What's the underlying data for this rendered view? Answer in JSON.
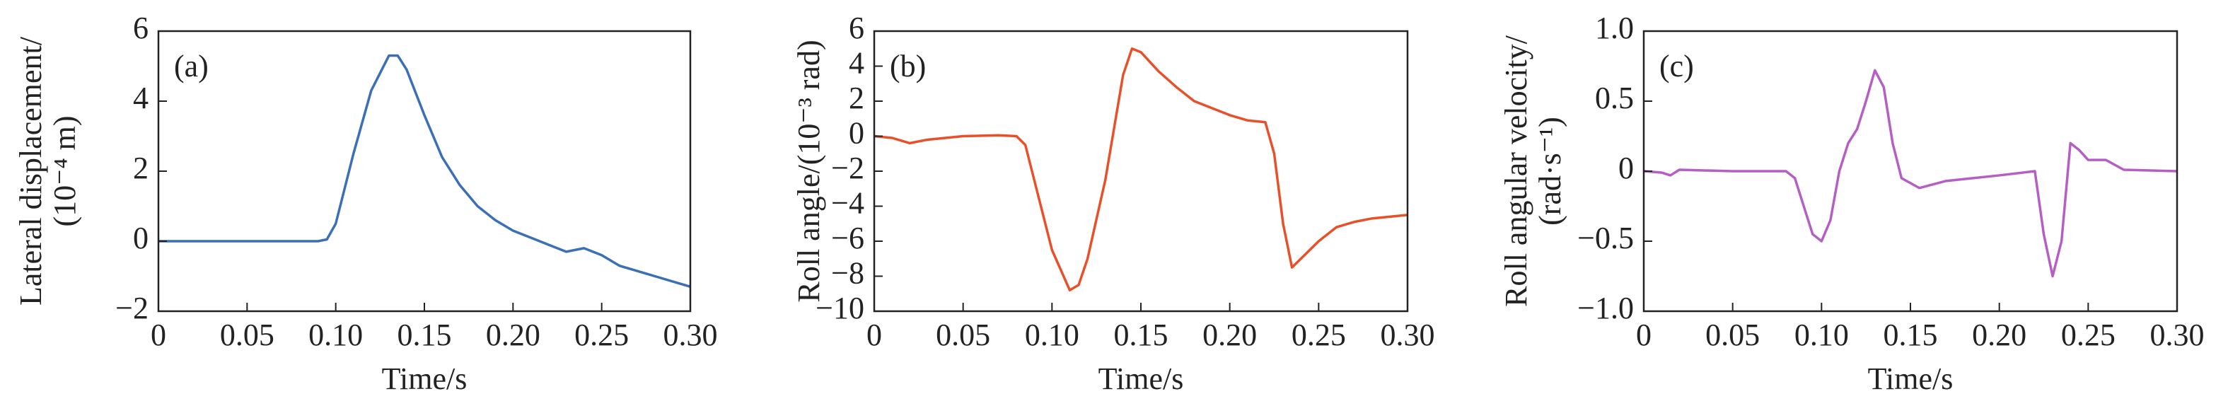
{
  "chart_data": [
    {
      "type": "line",
      "annotation": "(a)",
      "xlabel": "Time/s",
      "ylabel": [
        "Lateral displacement/",
        "(10⁻⁴ m)"
      ],
      "color": "#3b6fb6",
      "xlim": [
        0,
        0.3
      ],
      "xticks": [
        0,
        0.05,
        {
          "value": 0.1,
          "label": "0.10"
        },
        0.15,
        {
          "value": 0.2,
          "label": "0.20"
        },
        0.25,
        {
          "value": 0.3,
          "label": "0.30"
        }
      ],
      "ylim": [
        -2,
        6
      ],
      "yticks": [
        {
          "value": -2,
          "label": "−2"
        },
        0,
        2,
        4,
        6
      ],
      "x": [
        0,
        0.02,
        0.05,
        0.09,
        0.095,
        0.1,
        0.11,
        0.12,
        0.13,
        0.135,
        0.14,
        0.15,
        0.16,
        0.17,
        0.18,
        0.19,
        0.2,
        0.21,
        0.22,
        0.23,
        0.24,
        0.25,
        0.26,
        0.27,
        0.28,
        0.29,
        0.3
      ],
      "values": [
        0,
        0,
        0,
        0,
        0.05,
        0.5,
        2.5,
        4.3,
        5.3,
        5.3,
        4.9,
        3.6,
        2.4,
        1.6,
        1.0,
        0.6,
        0.3,
        0.1,
        -0.1,
        -0.3,
        -0.2,
        -0.4,
        -0.7,
        -0.85,
        -1.0,
        -1.15,
        -1.3
      ]
    },
    {
      "type": "line",
      "annotation": "(b)",
      "xlabel": "Time/s",
      "ylabel": [
        "Roll angle/(10⁻³ rad)"
      ],
      "color": "#e8502a",
      "xlim": [
        0,
        0.3
      ],
      "xticks": [
        0,
        0.05,
        {
          "value": 0.1,
          "label": "0.10"
        },
        0.15,
        {
          "value": 0.2,
          "label": "0.20"
        },
        0.25,
        {
          "value": 0.3,
          "label": "0.30"
        }
      ],
      "ylim": [
        -10,
        6
      ],
      "yticks": [
        {
          "value": -10,
          "label": "−10"
        },
        {
          "value": -8,
          "label": "−8"
        },
        {
          "value": -6,
          "label": "−6"
        },
        {
          "value": -4,
          "label": "−4"
        },
        {
          "value": -2,
          "label": "−2"
        },
        0,
        2,
        4,
        6
      ],
      "x": [
        0,
        0.01,
        0.02,
        0.03,
        0.04,
        0.05,
        0.07,
        0.08,
        0.085,
        0.09,
        0.1,
        0.11,
        0.115,
        0.12,
        0.13,
        0.14,
        0.145,
        0.15,
        0.16,
        0.17,
        0.18,
        0.19,
        0.2,
        0.21,
        0.22,
        0.225,
        0.23,
        0.235,
        0.24,
        0.25,
        0.26,
        0.27,
        0.28,
        0.29,
        0.3
      ],
      "values": [
        0,
        -0.1,
        -0.4,
        -0.2,
        -0.1,
        0,
        0.05,
        0,
        -0.5,
        -2.5,
        -6.5,
        -8.8,
        -8.5,
        -7,
        -2.5,
        3.5,
        5,
        4.8,
        3.7,
        2.8,
        2.0,
        1.6,
        1.2,
        0.9,
        0.8,
        -1,
        -5,
        -7.5,
        -7,
        -6.0,
        -5.2,
        -4.9,
        -4.7,
        -4.6,
        -4.5
      ]
    },
    {
      "type": "line",
      "annotation": "(c)",
      "xlabel": "Time/s",
      "ylabel": [
        "Roll angular velocity/",
        "(rad·s⁻¹)"
      ],
      "color": "#b55fc4",
      "xlim": [
        0,
        0.3
      ],
      "xticks": [
        0,
        0.05,
        {
          "value": 0.1,
          "label": "0.10"
        },
        0.15,
        {
          "value": 0.2,
          "label": "0.20"
        },
        0.25,
        {
          "value": 0.3,
          "label": "0.30"
        }
      ],
      "ylim": [
        -1,
        1
      ],
      "yticks": [
        {
          "value": -1,
          "label": "−1.0"
        },
        {
          "value": -0.5,
          "label": "−0.5"
        },
        0,
        0.5,
        {
          "value": 1,
          "label": "1.0"
        }
      ],
      "x": [
        0,
        0.01,
        0.015,
        0.02,
        0.05,
        0.08,
        0.085,
        0.09,
        0.095,
        0.1,
        0.105,
        0.11,
        0.115,
        0.12,
        0.125,
        0.13,
        0.135,
        0.14,
        0.145,
        0.155,
        0.17,
        0.2,
        0.22,
        0.225,
        0.23,
        0.235,
        0.24,
        0.245,
        0.25,
        0.26,
        0.27,
        0.3
      ],
      "values": [
        0,
        -0.01,
        -0.03,
        0.01,
        0,
        0,
        -0.05,
        -0.25,
        -0.45,
        -0.5,
        -0.35,
        0,
        0.2,
        0.3,
        0.5,
        0.72,
        0.6,
        0.2,
        -0.05,
        -0.12,
        -0.07,
        -0.03,
        0,
        -0.45,
        -0.75,
        -0.5,
        0.2,
        0.15,
        0.08,
        0.08,
        0.01,
        0
      ]
    }
  ]
}
